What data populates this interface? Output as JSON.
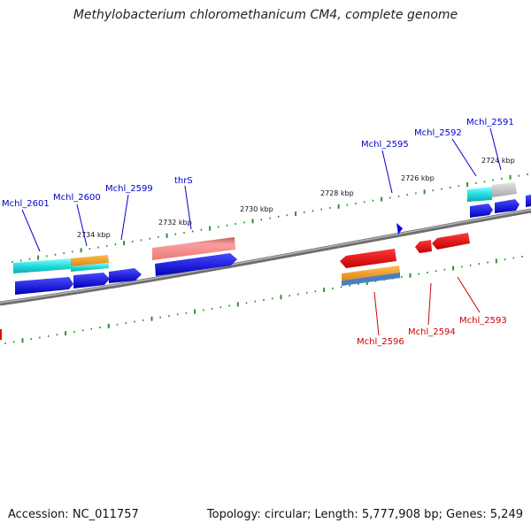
{
  "header": {
    "title": "Methylobacterium chloromethanicum CM4, complete genome"
  },
  "footer": {
    "accession": "Accession: NC_011757",
    "summary": "Topology: circular; Length: 5,777,908 bp; Genes: 5,249"
  },
  "map": {
    "colors": {
      "backbone": "#8c8c8c",
      "tick": "#2f8f2f",
      "forward_gene": "#0000ee",
      "reverse_gene": "#ee0000",
      "cyan_feature": "#22dddd",
      "orange_feature": "#ee9922",
      "pink_feature": "#ee7777",
      "gray_feature": "#c0c0c0",
      "forward_label": "#0000cc",
      "reverse_label": "#cc0000"
    },
    "position_labels": [
      "2734 kbp",
      "2732 kbp",
      "2730 kbp",
      "2728 kbp",
      "2726 kbp",
      "2724 kbp"
    ],
    "forward_gene_labels": [
      "Mchl_2601",
      "Mchl_2600",
      "Mchl_2599",
      "thrS",
      "Mchl_2595",
      "Mchl_2592",
      "Mchl_2591"
    ],
    "reverse_gene_labels": [
      "Mchl_2596",
      "Mchl_2594",
      "Mchl_2593"
    ]
  }
}
